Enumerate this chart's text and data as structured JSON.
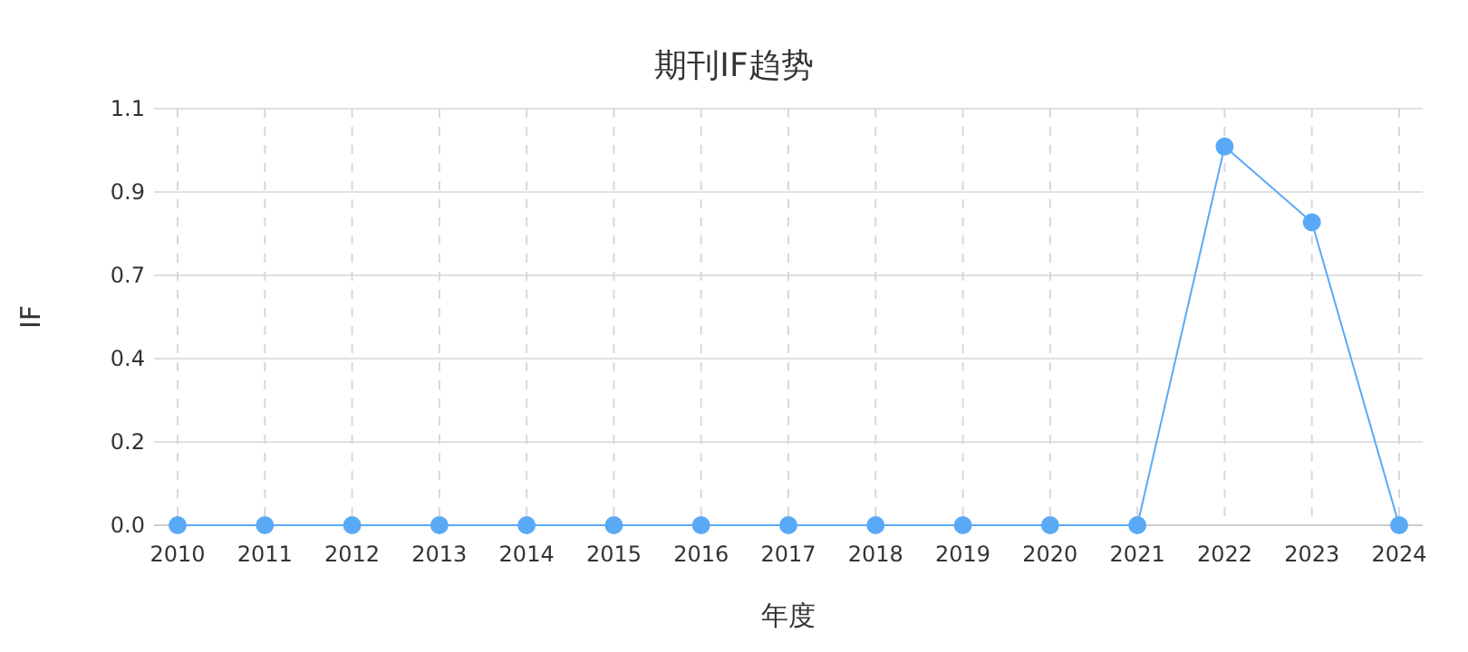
{
  "chart_data": {
    "type": "line",
    "title": "期刊IF趋势",
    "xlabel": "年度",
    "ylabel": "IF",
    "categories": [
      "2010",
      "2011",
      "2012",
      "2013",
      "2014",
      "2015",
      "2016",
      "2017",
      "2018",
      "2019",
      "2020",
      "2021",
      "2022",
      "2023",
      "2024"
    ],
    "series": [
      {
        "color": "#5aa9f7",
        "values": [
          0,
          0,
          0,
          0,
          0,
          0,
          0,
          0,
          0,
          0,
          0,
          0,
          1.0,
          0.8,
          0
        ]
      }
    ],
    "ylim": [
      0,
      1.1
    ],
    "yticks": [
      {
        "value": 0,
        "label": "0.0"
      },
      {
        "value": 0.22,
        "label": "0.2"
      },
      {
        "value": 0.44,
        "label": "0.4"
      },
      {
        "value": 0.66,
        "label": "0.7"
      },
      {
        "value": 0.88,
        "label": "0.9"
      },
      {
        "value": 1.1,
        "label": "1.1"
      }
    ],
    "grid": true,
    "marker": "circle",
    "line_style": "solid"
  }
}
